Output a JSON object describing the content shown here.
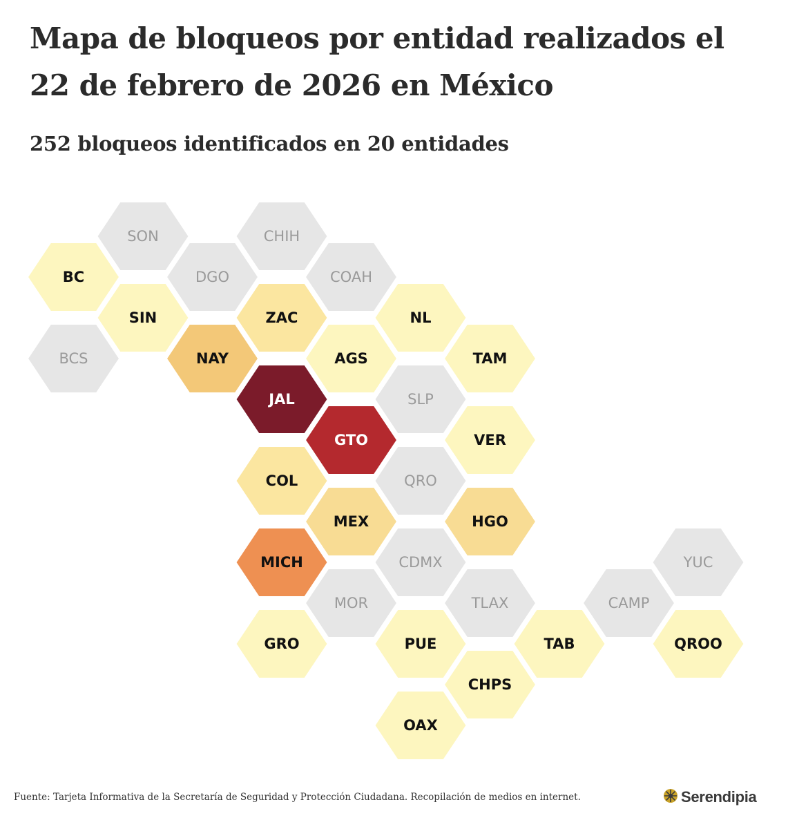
{
  "title": "Mapa de bloqueos por entidad realizados el 22 de febrero de 2026 en México",
  "subtitle": "252 bloqueos identificados en 20 entidades",
  "source": "Fuente: Tarjeta Informativa de la Secretaría de Seguridad y Protección Ciudadana. Recopilación de medios en internet.",
  "brand": {
    "name": "Serendipia",
    "logo_icon": "sunburst-icon"
  },
  "colors": {
    "none": "#e6e6e6",
    "low": "#fdf6bf",
    "mid_low": "#fbe6a0",
    "mid": "#f8dc94",
    "mid_high": "#f3c878",
    "high": "#ee9052",
    "very_high": "#b4292e",
    "max": "#7b1b2a"
  },
  "chart_data": {
    "type": "hex-tile-map",
    "states": [
      {
        "abbr": "SON",
        "col": 2,
        "row": 0,
        "level": "none"
      },
      {
        "abbr": "CHIH",
        "col": 4,
        "row": 0,
        "level": "none"
      },
      {
        "abbr": "BC",
        "col": 1,
        "row": 1,
        "level": "low"
      },
      {
        "abbr": "DGO",
        "col": 3,
        "row": 1,
        "level": "none"
      },
      {
        "abbr": "COAH",
        "col": 5,
        "row": 1,
        "level": "none"
      },
      {
        "abbr": "SIN",
        "col": 2,
        "row": 2,
        "level": "low"
      },
      {
        "abbr": "ZAC",
        "col": 4,
        "row": 2,
        "level": "mid_low"
      },
      {
        "abbr": "NL",
        "col": 6,
        "row": 2,
        "level": "low"
      },
      {
        "abbr": "BCS",
        "col": 1,
        "row": 3,
        "level": "none"
      },
      {
        "abbr": "NAY",
        "col": 3,
        "row": 3,
        "level": "mid_high"
      },
      {
        "abbr": "AGS",
        "col": 5,
        "row": 3,
        "level": "low"
      },
      {
        "abbr": "TAM",
        "col": 7,
        "row": 3,
        "level": "low"
      },
      {
        "abbr": "JAL",
        "col": 4,
        "row": 4,
        "level": "max"
      },
      {
        "abbr": "SLP",
        "col": 6,
        "row": 4,
        "level": "none"
      },
      {
        "abbr": "GTO",
        "col": 5,
        "row": 5,
        "level": "very_high"
      },
      {
        "abbr": "VER",
        "col": 7,
        "row": 5,
        "level": "low"
      },
      {
        "abbr": "COL",
        "col": 4,
        "row": 6,
        "level": "mid_low"
      },
      {
        "abbr": "QRO",
        "col": 6,
        "row": 6,
        "level": "none"
      },
      {
        "abbr": "MEX",
        "col": 5,
        "row": 7,
        "level": "mid"
      },
      {
        "abbr": "HGO",
        "col": 7,
        "row": 7,
        "level": "mid"
      },
      {
        "abbr": "MICH",
        "col": 4,
        "row": 8,
        "level": "high"
      },
      {
        "abbr": "CDMX",
        "col": 6,
        "row": 8,
        "level": "none"
      },
      {
        "abbr": "YUC",
        "col": 10,
        "row": 8,
        "level": "none"
      },
      {
        "abbr": "MOR",
        "col": 5,
        "row": 9,
        "level": "none"
      },
      {
        "abbr": "TLAX",
        "col": 7,
        "row": 9,
        "level": "none"
      },
      {
        "abbr": "CAMP",
        "col": 9,
        "row": 9,
        "level": "none"
      },
      {
        "abbr": "GRO",
        "col": 4,
        "row": 10,
        "level": "low"
      },
      {
        "abbr": "PUE",
        "col": 6,
        "row": 10,
        "level": "low"
      },
      {
        "abbr": "TAB",
        "col": 8,
        "row": 10,
        "level": "low"
      },
      {
        "abbr": "QROO",
        "col": 10,
        "row": 10,
        "level": "low"
      },
      {
        "abbr": "CHPS",
        "col": 7,
        "row": 11,
        "level": "low"
      },
      {
        "abbr": "OAX",
        "col": 6,
        "row": 12,
        "level": "low"
      }
    ]
  }
}
